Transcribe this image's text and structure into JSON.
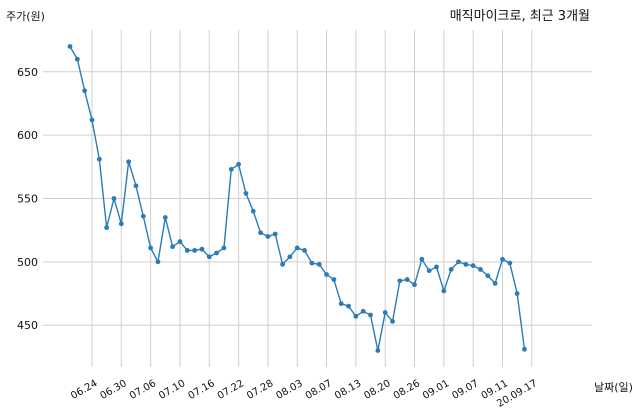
{
  "chart_data": {
    "type": "line",
    "title": "매직마이크로, 최근 3개월",
    "xlabel": "날짜(일)",
    "ylabel": "주가(원)",
    "grid": true,
    "ylim": [
      417,
      683
    ],
    "y_ticks": [
      450,
      500,
      550,
      600,
      650
    ],
    "x_ticks": [
      {
        "index": 3,
        "label": "06.24"
      },
      {
        "index": 7,
        "label": "06.30"
      },
      {
        "index": 11,
        "label": "07.06"
      },
      {
        "index": 15,
        "label": "07.10"
      },
      {
        "index": 19,
        "label": "07.16"
      },
      {
        "index": 23,
        "label": "07.22"
      },
      {
        "index": 27,
        "label": "07.28"
      },
      {
        "index": 31,
        "label": "08.03"
      },
      {
        "index": 35,
        "label": "08.07"
      },
      {
        "index": 39,
        "label": "08.13"
      },
      {
        "index": 43,
        "label": "08.20"
      },
      {
        "index": 47,
        "label": "08.26"
      },
      {
        "index": 51,
        "label": "09.01"
      },
      {
        "index": 55,
        "label": "09.07"
      },
      {
        "index": 59,
        "label": "09.11"
      },
      {
        "index": 63,
        "label": "20.09.17"
      }
    ],
    "series": [
      {
        "color": "#2c7bb6",
        "values": [
          670,
          660,
          635,
          612,
          581,
          527,
          550,
          530,
          579,
          560,
          536,
          511,
          500,
          535,
          512,
          516,
          509,
          509,
          510,
          504,
          507,
          511,
          573,
          577,
          554,
          540,
          523,
          520,
          522,
          498,
          504,
          511,
          509,
          499,
          498,
          490,
          486,
          467,
          465,
          457,
          461,
          458,
          430,
          460,
          453,
          485,
          486,
          482,
          502,
          493,
          496,
          477,
          494,
          500,
          498,
          497,
          494,
          489,
          483,
          502,
          499,
          475,
          431
        ]
      }
    ]
  }
}
